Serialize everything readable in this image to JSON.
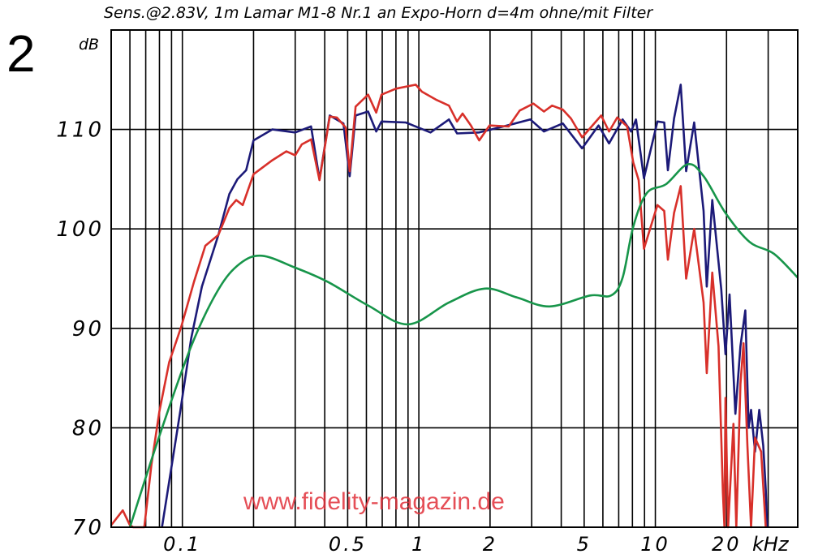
{
  "figure_number": "2",
  "watermark": "www.fidelity-magazin.de",
  "chart_data": {
    "type": "line",
    "title": "Sens.@2.83V, 1m Lamar M1-8 Nr.1 an Expo-Horn d=4m ohne/mit Filter",
    "ylabel": "dB",
    "xlabel": "kHz",
    "xscale": "log",
    "xlim": [
      0.05,
      40
    ],
    "ylim": [
      70,
      120
    ],
    "grid": true,
    "x_gridlines": [
      0.06,
      0.07,
      0.08,
      0.09,
      0.1,
      0.2,
      0.3,
      0.4,
      0.5,
      0.6,
      0.7,
      0.8,
      0.9,
      1,
      2,
      3,
      4,
      5,
      6,
      7,
      8,
      9,
      10,
      20,
      30
    ],
    "y_gridlines": [
      80,
      90,
      100,
      110
    ],
    "x_ticks": [
      {
        "v": 0.1,
        "label": "0.1"
      },
      {
        "v": 0.5,
        "label": "0.5"
      },
      {
        "v": 1,
        "label": "1"
      },
      {
        "v": 2,
        "label": "2"
      },
      {
        "v": 5,
        "label": "5"
      },
      {
        "v": 10,
        "label": "10"
      },
      {
        "v": 20,
        "label": "20"
      }
    ],
    "y_ticks": [
      {
        "v": 70,
        "label": "70"
      },
      {
        "v": 80,
        "label": "80"
      },
      {
        "v": 90,
        "label": "90"
      },
      {
        "v": 100,
        "label": "100"
      },
      {
        "v": 110,
        "label": "110"
      }
    ],
    "series": [
      {
        "color": "#1c1a78",
        "smooth": false,
        "x": [
          0.082,
          0.098,
          0.109,
          0.121,
          0.142,
          0.158,
          0.171,
          0.186,
          0.2,
          0.24,
          0.3,
          0.35,
          0.38,
          0.42,
          0.48,
          0.51,
          0.54,
          0.61,
          0.66,
          0.695,
          0.88,
          1.12,
          1.34,
          1.45,
          1.8,
          2.28,
          2.96,
          3.38,
          4.06,
          4.9,
          5.75,
          6.37,
          7.27,
          7.9,
          8.28,
          8.95,
          10.2,
          10.9,
          11.3,
          12,
          12.8,
          13.5,
          14.6,
          16,
          16.5,
          17.4,
          19,
          19.8,
          20.6,
          21.8,
          22.9,
          24,
          24.8,
          25.4,
          26.4,
          27.5,
          28.6,
          29.3,
          29.7
        ],
        "y": [
          70,
          81.7,
          89,
          94.2,
          99.4,
          103.5,
          105,
          105.9,
          108.9,
          110,
          109.7,
          110.3,
          105,
          111.4,
          110.6,
          105.3,
          111.4,
          111.8,
          109.8,
          110.8,
          110.7,
          109.7,
          111,
          109.6,
          109.7,
          110.3,
          111,
          109.8,
          110.6,
          108.1,
          110.4,
          108.6,
          111,
          109.8,
          111,
          105.1,
          110.8,
          110.7,
          105.9,
          111.1,
          114.5,
          105.8,
          110.7,
          101.8,
          94.2,
          102.9,
          93.9,
          87.4,
          93.4,
          81.4,
          88.2,
          91.8,
          80,
          81.8,
          77.6,
          81.8,
          78.2,
          73.8,
          70
        ]
      },
      {
        "color": "#d8302a",
        "smooth": false,
        "x": [
          0.05,
          0.056,
          0.06,
          0.062,
          0.069,
          0.074,
          0.08,
          0.088,
          0.099,
          0.112,
          0.125,
          0.142,
          0.158,
          0.169,
          0.18,
          0.2,
          0.24,
          0.275,
          0.3,
          0.32,
          0.35,
          0.38,
          0.42,
          0.45,
          0.49,
          0.51,
          0.54,
          0.61,
          0.66,
          0.695,
          0.8,
          0.97,
          1.03,
          1.18,
          1.34,
          1.45,
          1.53,
          1.66,
          1.8,
          1.99,
          2.4,
          2.67,
          3.05,
          3.38,
          3.66,
          4.06,
          4.4,
          4.9,
          5.9,
          6.37,
          6.9,
          7.6,
          8.06,
          8.5,
          8.95,
          10.2,
          10.9,
          11.3,
          12,
          12.8,
          13.5,
          14.6,
          16,
          16.5,
          17.4,
          18.5,
          19.3,
          19.6,
          19.8,
          20.3,
          21.4,
          22,
          22.9,
          23.6,
          24.5,
          25.4,
          26.4,
          28,
          29.3
        ],
        "y": [
          70.2,
          71.7,
          70.2,
          70,
          70,
          76.3,
          81.7,
          86.6,
          90.2,
          94.7,
          98.3,
          99.4,
          102.1,
          102.9,
          102.4,
          105.5,
          106.9,
          107.8,
          107.4,
          108.5,
          109,
          104.9,
          111.3,
          111.2,
          110.2,
          105.8,
          112.3,
          113.5,
          111.7,
          113.5,
          114.1,
          114.5,
          113.8,
          113,
          112.4,
          110.8,
          111.6,
          110.4,
          108.9,
          110.4,
          110.3,
          111.9,
          112.6,
          111.8,
          112.4,
          112,
          111.1,
          109.2,
          111.4,
          109.8,
          111.2,
          110.3,
          106.7,
          104.9,
          98,
          102.4,
          101.8,
          96.9,
          101.6,
          104.3,
          95,
          100,
          92.6,
          85.5,
          95.6,
          88.2,
          73.5,
          70,
          83,
          70,
          80.4,
          70,
          84.4,
          88.5,
          78.2,
          70,
          79,
          77.6,
          70
        ]
      },
      {
        "color": "#17954a",
        "smooth": true,
        "x": [
          0.06,
          0.08,
          0.109,
          0.142,
          0.175,
          0.217,
          0.3,
          0.41,
          0.61,
          0.9,
          1.34,
          1.9,
          2.6,
          3.57,
          5.3,
          6.5,
          7.27,
          8.06,
          9.2,
          11.1,
          13.7,
          16,
          19.8,
          25,
          31.7,
          40
        ],
        "y": [
          70,
          79.2,
          88.2,
          93.9,
          96.5,
          97.3,
          96.1,
          94.7,
          92.3,
          90.4,
          92.6,
          94,
          93.1,
          92.2,
          93.3,
          93.3,
          95.1,
          100.2,
          103.6,
          104.5,
          106.5,
          105.3,
          101.6,
          98.7,
          97.5,
          95.1
        ]
      }
    ]
  }
}
